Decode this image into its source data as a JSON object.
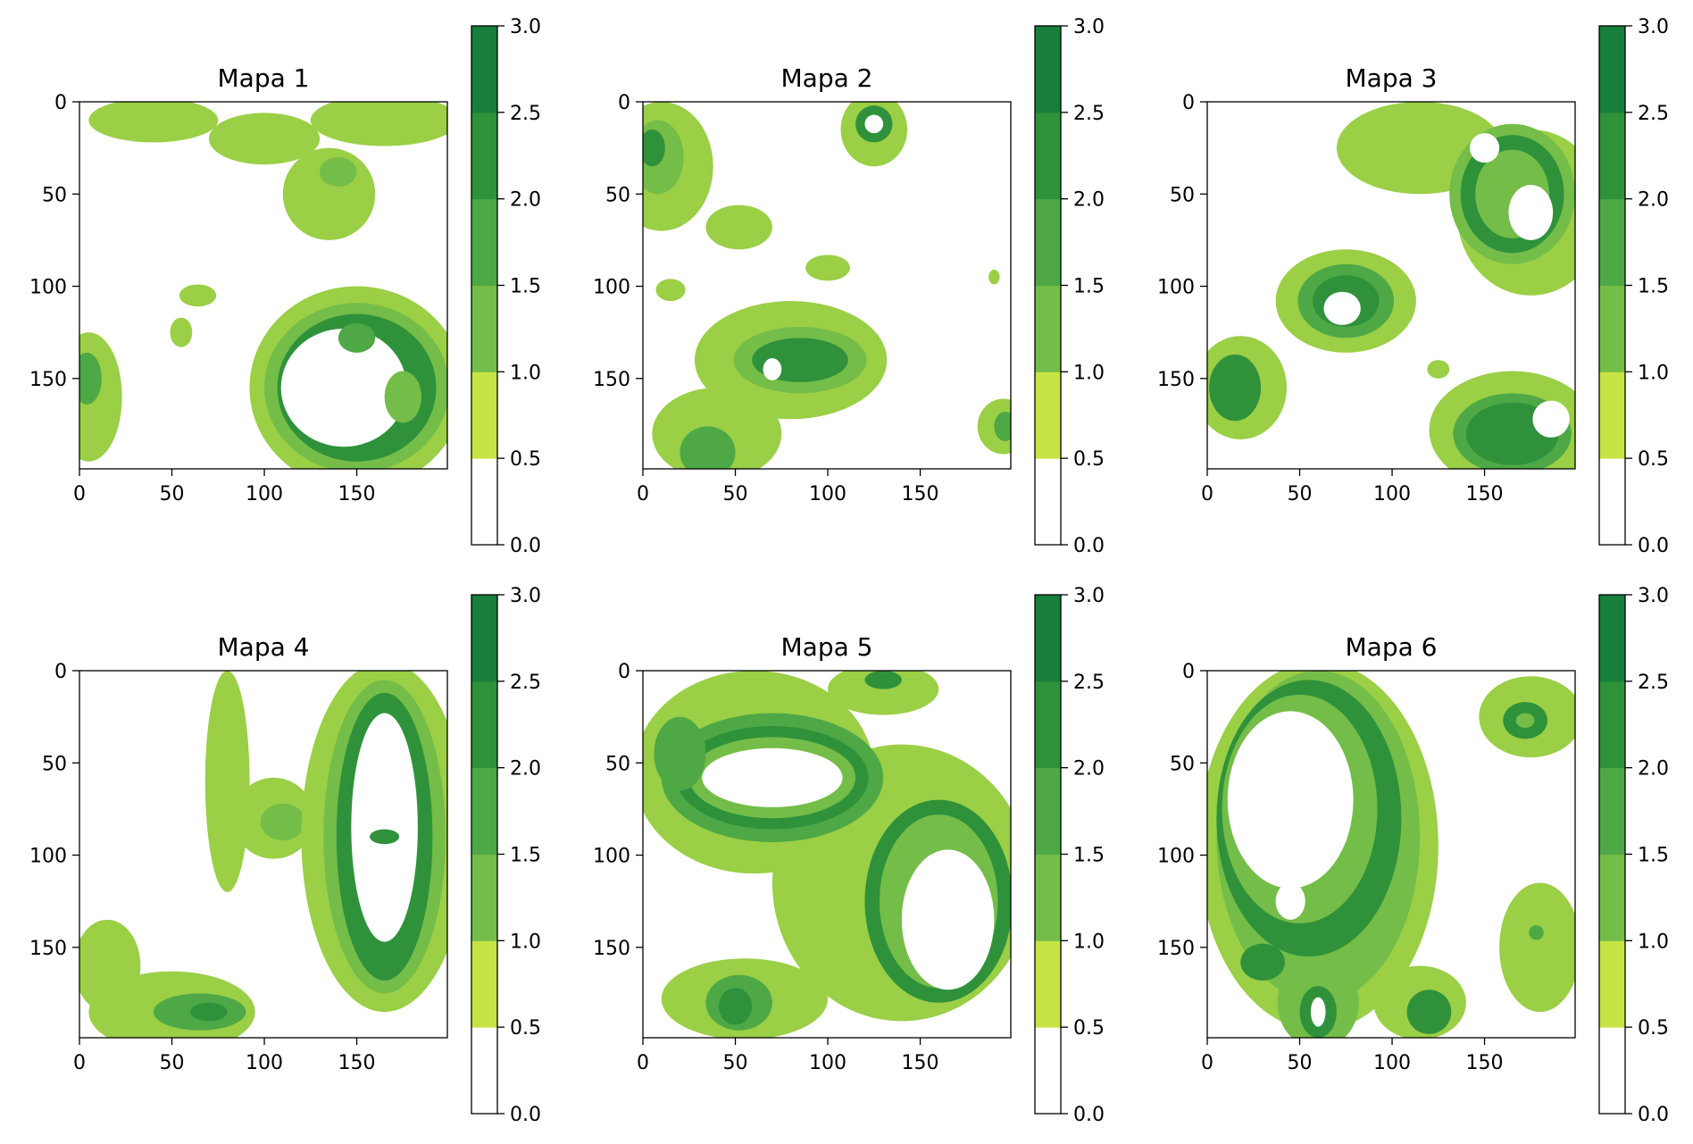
{
  "chart_data": [
    {
      "type": "heatmap",
      "title": "Mapa 1",
      "xlabel": "",
      "ylabel": "",
      "xlim": [
        0,
        199
      ],
      "ylim": [
        199,
        0
      ],
      "x_ticks": [
        0,
        50,
        100,
        150
      ],
      "y_ticks": [
        0,
        50,
        100,
        150
      ],
      "x_tick_labels": [
        "0",
        "50",
        "100",
        "150"
      ],
      "y_tick_labels": [
        "0",
        "50",
        "100",
        "150"
      ],
      "grid": false,
      "colorbar": {
        "ticks": [
          "0.0",
          "0.5",
          "1.0",
          "1.5",
          "2.0",
          "2.5",
          "3.0"
        ],
        "range": [
          0,
          3
        ]
      },
      "blobs": [
        {
          "cx": 40,
          "cy": 10,
          "rx": 35,
          "ry": 12,
          "level": 1
        },
        {
          "cx": 100,
          "cy": 20,
          "rx": 30,
          "ry": 14,
          "level": 1
        },
        {
          "cx": 165,
          "cy": 10,
          "rx": 40,
          "ry": 14,
          "level": 1
        },
        {
          "cx": 135,
          "cy": 50,
          "rx": 25,
          "ry": 25,
          "level": 1
        },
        {
          "cx": 140,
          "cy": 38,
          "rx": 10,
          "ry": 8,
          "level": 1.5
        },
        {
          "cx": 5,
          "cy": 160,
          "rx": 18,
          "ry": 35,
          "level": 1
        },
        {
          "cx": 4,
          "cy": 150,
          "rx": 8,
          "ry": 14,
          "level": 2
        },
        {
          "cx": 64,
          "cy": 105,
          "rx": 10,
          "ry": 6,
          "level": 1
        },
        {
          "cx": 55,
          "cy": 125,
          "rx": 6,
          "ry": 8,
          "level": 1
        },
        {
          "cx": 150,
          "cy": 155,
          "rx": 58,
          "ry": 55,
          "level": 1
        },
        {
          "cx": 150,
          "cy": 155,
          "rx": 50,
          "ry": 46,
          "level": 1.5
        },
        {
          "cx": 150,
          "cy": 155,
          "rx": 43,
          "ry": 40,
          "level": 2.5
        },
        {
          "cx": 143,
          "cy": 155,
          "rx": 34,
          "ry": 32,
          "level": 0
        },
        {
          "cx": 150,
          "cy": 128,
          "rx": 10,
          "ry": 8,
          "level": 2
        },
        {
          "cx": 175,
          "cy": 160,
          "rx": 10,
          "ry": 14,
          "level": 1.5
        }
      ]
    },
    {
      "type": "heatmap",
      "title": "Mapa 2",
      "xlabel": "",
      "ylabel": "",
      "xlim": [
        0,
        199
      ],
      "ylim": [
        199,
        0
      ],
      "x_ticks": [
        0,
        50,
        100,
        150
      ],
      "y_ticks": [
        0,
        50,
        100,
        150
      ],
      "x_tick_labels": [
        "0",
        "50",
        "100",
        "150"
      ],
      "y_tick_labels": [
        "0",
        "50",
        "100",
        "150"
      ],
      "grid": false,
      "colorbar": {
        "ticks": [
          "0.0",
          "0.5",
          "1.0",
          "1.5",
          "2.0",
          "2.5",
          "3.0"
        ],
        "range": [
          0,
          3
        ]
      },
      "blobs": [
        {
          "cx": 10,
          "cy": 35,
          "rx": 28,
          "ry": 35,
          "level": 1
        },
        {
          "cx": 8,
          "cy": 30,
          "rx": 14,
          "ry": 20,
          "level": 1.5
        },
        {
          "cx": 5,
          "cy": 25,
          "rx": 7,
          "ry": 10,
          "level": 2.5
        },
        {
          "cx": 125,
          "cy": 15,
          "rx": 18,
          "ry": 20,
          "level": 1
        },
        {
          "cx": 125,
          "cy": 12,
          "rx": 10,
          "ry": 10,
          "level": 2.5
        },
        {
          "cx": 125,
          "cy": 12,
          "rx": 5,
          "ry": 5,
          "level": 0
        },
        {
          "cx": 52,
          "cy": 68,
          "rx": 18,
          "ry": 12,
          "level": 1
        },
        {
          "cx": 100,
          "cy": 90,
          "rx": 12,
          "ry": 7,
          "level": 1
        },
        {
          "cx": 15,
          "cy": 102,
          "rx": 8,
          "ry": 6,
          "level": 1
        },
        {
          "cx": 80,
          "cy": 140,
          "rx": 52,
          "ry": 32,
          "level": 1
        },
        {
          "cx": 40,
          "cy": 180,
          "rx": 35,
          "ry": 25,
          "level": 1
        },
        {
          "cx": 85,
          "cy": 140,
          "rx": 36,
          "ry": 18,
          "level": 1.5
        },
        {
          "cx": 85,
          "cy": 140,
          "rx": 26,
          "ry": 12,
          "level": 2.5
        },
        {
          "cx": 70,
          "cy": 145,
          "rx": 5,
          "ry": 6,
          "level": 0
        },
        {
          "cx": 35,
          "cy": 190,
          "rx": 15,
          "ry": 14,
          "level": 2
        },
        {
          "cx": 195,
          "cy": 176,
          "rx": 14,
          "ry": 15,
          "level": 1
        },
        {
          "cx": 196,
          "cy": 176,
          "rx": 6,
          "ry": 8,
          "level": 2
        },
        {
          "cx": 190,
          "cy": 95,
          "rx": 3,
          "ry": 4,
          "level": 1
        }
      ]
    },
    {
      "type": "heatmap",
      "title": "Mapa 3",
      "xlabel": "",
      "ylabel": "",
      "xlim": [
        0,
        199
      ],
      "ylim": [
        199,
        0
      ],
      "x_ticks": [
        0,
        50,
        100,
        150
      ],
      "y_ticks": [
        0,
        50,
        100,
        150
      ],
      "x_tick_labels": [
        "0",
        "50",
        "100",
        "150"
      ],
      "y_tick_labels": [
        "0",
        "50",
        "100",
        "150"
      ],
      "grid": false,
      "colorbar": {
        "ticks": [
          "0.0",
          "0.5",
          "1.0",
          "1.5",
          "2.0",
          "2.5",
          "3.0"
        ],
        "range": [
          0,
          3
        ]
      },
      "blobs": [
        {
          "cx": 115,
          "cy": 25,
          "rx": 45,
          "ry": 25,
          "level": 1
        },
        {
          "cx": 175,
          "cy": 60,
          "rx": 40,
          "ry": 45,
          "level": 1
        },
        {
          "cx": 165,
          "cy": 50,
          "rx": 34,
          "ry": 38,
          "level": 1.5
        },
        {
          "cx": 165,
          "cy": 50,
          "rx": 28,
          "ry": 32,
          "level": 2.5
        },
        {
          "cx": 165,
          "cy": 50,
          "rx": 20,
          "ry": 24,
          "level": 1.5
        },
        {
          "cx": 175,
          "cy": 60,
          "rx": 12,
          "ry": 15,
          "level": 0
        },
        {
          "cx": 150,
          "cy": 25,
          "rx": 8,
          "ry": 8,
          "level": 0
        },
        {
          "cx": 75,
          "cy": 108,
          "rx": 38,
          "ry": 28,
          "level": 1
        },
        {
          "cx": 75,
          "cy": 108,
          "rx": 26,
          "ry": 20,
          "level": 2
        },
        {
          "cx": 75,
          "cy": 108,
          "rx": 18,
          "ry": 14,
          "level": 2.5
        },
        {
          "cx": 73,
          "cy": 112,
          "rx": 10,
          "ry": 9,
          "level": 0
        },
        {
          "cx": 18,
          "cy": 155,
          "rx": 25,
          "ry": 28,
          "level": 1
        },
        {
          "cx": 15,
          "cy": 155,
          "rx": 14,
          "ry": 18,
          "level": 2.5
        },
        {
          "cx": 165,
          "cy": 178,
          "rx": 45,
          "ry": 32,
          "level": 1
        },
        {
          "cx": 165,
          "cy": 180,
          "rx": 32,
          "ry": 22,
          "level": 2
        },
        {
          "cx": 165,
          "cy": 180,
          "rx": 25,
          "ry": 17,
          "level": 2.5
        },
        {
          "cx": 186,
          "cy": 172,
          "rx": 10,
          "ry": 10,
          "level": 0
        },
        {
          "cx": 125,
          "cy": 145,
          "rx": 6,
          "ry": 5,
          "level": 1
        }
      ]
    },
    {
      "type": "heatmap",
      "title": "Mapa 4",
      "xlabel": "",
      "ylabel": "",
      "xlim": [
        0,
        199
      ],
      "ylim": [
        199,
        0
      ],
      "x_ticks": [
        0,
        50,
        100,
        150
      ],
      "y_ticks": [
        0,
        50,
        100,
        150
      ],
      "x_tick_labels": [
        "0",
        "50",
        "100",
        "150"
      ],
      "y_tick_labels": [
        "0",
        "50",
        "100",
        "150"
      ],
      "grid": false,
      "colorbar": {
        "ticks": [
          "0.0",
          "0.5",
          "1.0",
          "1.5",
          "2.0",
          "2.5",
          "3.0"
        ],
        "range": [
          0,
          3
        ]
      },
      "blobs": [
        {
          "cx": 80,
          "cy": 60,
          "rx": 12,
          "ry": 60,
          "level": 1
        },
        {
          "cx": 105,
          "cy": 80,
          "rx": 22,
          "ry": 22,
          "level": 1
        },
        {
          "cx": 110,
          "cy": 82,
          "rx": 12,
          "ry": 10,
          "level": 1.5
        },
        {
          "cx": 165,
          "cy": 90,
          "rx": 45,
          "ry": 95,
          "level": 1
        },
        {
          "cx": 165,
          "cy": 90,
          "rx": 33,
          "ry": 85,
          "level": 1.5
        },
        {
          "cx": 165,
          "cy": 90,
          "rx": 26,
          "ry": 78,
          "level": 2.5
        },
        {
          "cx": 165,
          "cy": 85,
          "rx": 18,
          "ry": 62,
          "level": 0
        },
        {
          "cx": 165,
          "cy": 90,
          "rx": 8,
          "ry": 4,
          "level": 2.5
        },
        {
          "cx": 50,
          "cy": 185,
          "rx": 45,
          "ry": 22,
          "level": 1
        },
        {
          "cx": 15,
          "cy": 160,
          "rx": 18,
          "ry": 25,
          "level": 1
        },
        {
          "cx": 65,
          "cy": 185,
          "rx": 25,
          "ry": 10,
          "level": 2
        },
        {
          "cx": 70,
          "cy": 185,
          "rx": 10,
          "ry": 5,
          "level": 2.5
        }
      ]
    },
    {
      "type": "heatmap",
      "title": "Mapa 5",
      "xlabel": "",
      "ylabel": "",
      "xlim": [
        0,
        199
      ],
      "ylim": [
        199,
        0
      ],
      "x_ticks": [
        0,
        50,
        100,
        150
      ],
      "y_ticks": [
        0,
        50,
        100,
        150
      ],
      "x_tick_labels": [
        "0",
        "50",
        "100",
        "150"
      ],
      "y_tick_labels": [
        "0",
        "50",
        "100",
        "150"
      ],
      "grid": false,
      "colorbar": {
        "ticks": [
          "0.0",
          "0.5",
          "1.0",
          "1.5",
          "2.0",
          "2.5",
          "3.0"
        ],
        "range": [
          0,
          3
        ]
      },
      "blobs": [
        {
          "cx": 60,
          "cy": 55,
          "rx": 65,
          "ry": 55,
          "level": 1
        },
        {
          "cx": 140,
          "cy": 115,
          "rx": 70,
          "ry": 75,
          "level": 1
        },
        {
          "cx": 130,
          "cy": 10,
          "rx": 30,
          "ry": 14,
          "level": 1
        },
        {
          "cx": 130,
          "cy": 5,
          "rx": 10,
          "ry": 5,
          "level": 2.5
        },
        {
          "cx": 70,
          "cy": 58,
          "rx": 60,
          "ry": 35,
          "level": 2
        },
        {
          "cx": 70,
          "cy": 58,
          "rx": 52,
          "ry": 28,
          "level": 2.5
        },
        {
          "cx": 70,
          "cy": 58,
          "rx": 45,
          "ry": 22,
          "level": 1.5
        },
        {
          "cx": 70,
          "cy": 58,
          "rx": 38,
          "ry": 16,
          "level": 0
        },
        {
          "cx": 160,
          "cy": 125,
          "rx": 40,
          "ry": 55,
          "level": 2.5
        },
        {
          "cx": 160,
          "cy": 125,
          "rx": 32,
          "ry": 47,
          "level": 1.5
        },
        {
          "cx": 165,
          "cy": 135,
          "rx": 25,
          "ry": 38,
          "level": 0
        },
        {
          "cx": 20,
          "cy": 45,
          "rx": 14,
          "ry": 20,
          "level": 2
        },
        {
          "cx": 55,
          "cy": 178,
          "rx": 45,
          "ry": 22,
          "level": 1
        },
        {
          "cx": 52,
          "cy": 180,
          "rx": 18,
          "ry": 15,
          "level": 2
        },
        {
          "cx": 50,
          "cy": 182,
          "rx": 9,
          "ry": 10,
          "level": 2.5
        }
      ]
    },
    {
      "type": "heatmap",
      "title": "Mapa 6",
      "xlabel": "",
      "ylabel": "",
      "xlim": [
        0,
        199
      ],
      "ylim": [
        199,
        0
      ],
      "x_ticks": [
        0,
        50,
        100,
        150
      ],
      "y_ticks": [
        0,
        50,
        100,
        150
      ],
      "x_tick_labels": [
        "0",
        "50",
        "100",
        "150"
      ],
      "y_tick_labels": [
        "0",
        "50",
        "100",
        "150"
      ],
      "grid": false,
      "colorbar": {
        "ticks": [
          "0.0",
          "0.5",
          "1.0",
          "1.5",
          "2.0",
          "2.5",
          "3.0"
        ],
        "range": [
          0,
          3
        ]
      },
      "blobs": [
        {
          "cx": 60,
          "cy": 95,
          "rx": 65,
          "ry": 100,
          "level": 1
        },
        {
          "cx": 60,
          "cy": 90,
          "rx": 55,
          "ry": 90,
          "level": 1.5
        },
        {
          "cx": 55,
          "cy": 80,
          "rx": 50,
          "ry": 75,
          "level": 2.5
        },
        {
          "cx": 50,
          "cy": 75,
          "rx": 42,
          "ry": 62,
          "level": 1.5
        },
        {
          "cx": 45,
          "cy": 70,
          "rx": 34,
          "ry": 48,
          "level": 0
        },
        {
          "cx": 45,
          "cy": 125,
          "rx": 8,
          "ry": 10,
          "level": 0
        },
        {
          "cx": 175,
          "cy": 25,
          "rx": 28,
          "ry": 22,
          "level": 1
        },
        {
          "cx": 172,
          "cy": 27,
          "rx": 12,
          "ry": 10,
          "level": 2.5
        },
        {
          "cx": 172,
          "cy": 27,
          "rx": 5,
          "ry": 4,
          "level": 1.5
        },
        {
          "cx": 180,
          "cy": 150,
          "rx": 22,
          "ry": 35,
          "level": 1
        },
        {
          "cx": 178,
          "cy": 142,
          "rx": 4,
          "ry": 4,
          "level": 2
        },
        {
          "cx": 115,
          "cy": 180,
          "rx": 25,
          "ry": 20,
          "level": 1
        },
        {
          "cx": 120,
          "cy": 185,
          "rx": 12,
          "ry": 12,
          "level": 2.5
        },
        {
          "cx": 60,
          "cy": 180,
          "rx": 22,
          "ry": 25,
          "level": 1.5
        },
        {
          "cx": 60,
          "cy": 185,
          "rx": 10,
          "ry": 14,
          "level": 2.5
        },
        {
          "cx": 60,
          "cy": 185,
          "rx": 4,
          "ry": 8,
          "level": 0
        },
        {
          "cx": 30,
          "cy": 158,
          "rx": 12,
          "ry": 10,
          "level": 2.5
        }
      ]
    }
  ],
  "colors": {
    "level_0": "#ffffff",
    "level_0_5": "#c7e445",
    "level_1": "#9acf46",
    "level_1_5": "#74bd48",
    "level_2": "#4ea846",
    "level_2_5": "#2f923b",
    "level_3": "#177f3b"
  }
}
